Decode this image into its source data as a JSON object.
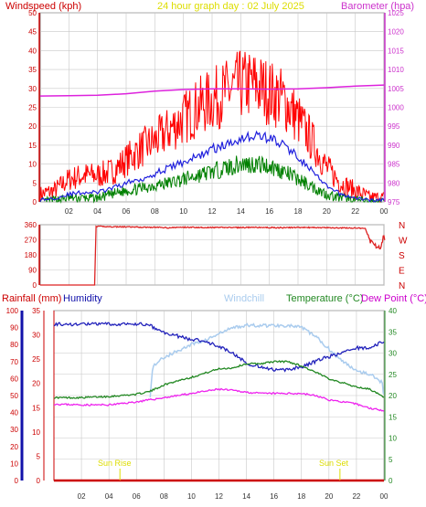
{
  "header": {
    "left_title": "Windspeed (kph)",
    "center_title": "24 hour graph day : 02 July 2025",
    "right_title": "Barometer (hpa)"
  },
  "lower_header": {
    "rainfall": "Rainfall (mm)",
    "humidity": "Humidity",
    "windchill": "Windchill",
    "temperature": "Temperature (°C)",
    "dewpoint": "Dew Point (°C)"
  },
  "annotations": {
    "sunrise": "Sun Rise",
    "sunset": "Sun Set"
  },
  "colors": {
    "wind_speed": "#ff0000",
    "wind_avg": "#2020dd",
    "wind_low": "#008000",
    "barometer": "#dd22dd",
    "wind_dir": "#dd2222",
    "humidity": "#2222bb",
    "windchill": "#aaccee",
    "temperature": "#228822",
    "dewpoint": "#ee22ee",
    "rain": "#cc0000",
    "grid": "#c8c8c8",
    "title_left": "#cc0000",
    "title_center": "#dddd00",
    "title_right": "#cc33cc",
    "humidity_axis": "#1111aa",
    "sun_marker": "#dddd00"
  },
  "chart_data": [
    {
      "type": "line",
      "name": "wind-barometer",
      "x_ticks": [
        "02",
        "04",
        "06",
        "08",
        "10",
        "12",
        "14",
        "16",
        "18",
        "20",
        "22",
        "00"
      ],
      "xlim": [
        0,
        24
      ],
      "y_left_ticks": [
        0,
        5,
        10,
        15,
        20,
        25,
        30,
        35,
        40,
        45,
        50
      ],
      "ylim_left": [
        0,
        50
      ],
      "y_right_ticks": [
        975,
        980,
        985,
        990,
        995,
        1000,
        1005,
        1010,
        1015,
        1020,
        1025
      ],
      "ylim_right": [
        975,
        1025
      ],
      "series": [
        {
          "key": "gust",
          "axis": "left",
          "points": [
            [
              0,
              2
            ],
            [
              1,
              3
            ],
            [
              2,
              6
            ],
            [
              3,
              7
            ],
            [
              4,
              7
            ],
            [
              5,
              8
            ],
            [
              6,
              11
            ],
            [
              7,
              14
            ],
            [
              8,
              16
            ],
            [
              9,
              19
            ],
            [
              10,
              22
            ],
            [
              11,
              25
            ],
            [
              12,
              27
            ],
            [
              13,
              29
            ],
            [
              14,
              31
            ],
            [
              15,
              31
            ],
            [
              16,
              29
            ],
            [
              17,
              27
            ],
            [
              18,
              22
            ],
            [
              19,
              16
            ],
            [
              20,
              9
            ],
            [
              21,
              5
            ],
            [
              22,
              3
            ],
            [
              23,
              1
            ],
            [
              24,
              1
            ]
          ]
        },
        {
          "key": "average",
          "axis": "left",
          "points": [
            [
              0,
              0.5
            ],
            [
              1,
              1
            ],
            [
              2,
              2
            ],
            [
              3,
              2.5
            ],
            [
              4,
              2.5
            ],
            [
              5,
              3.5
            ],
            [
              6,
              5
            ],
            [
              7,
              6
            ],
            [
              8,
              7.5
            ],
            [
              9,
              9
            ],
            [
              10,
              10.5
            ],
            [
              11,
              12
            ],
            [
              12,
              14
            ],
            [
              13,
              15
            ],
            [
              14,
              17
            ],
            [
              15,
              17.5
            ],
            [
              16,
              17
            ],
            [
              17,
              15
            ],
            [
              18,
              12
            ],
            [
              19,
              8
            ],
            [
              20,
              4
            ],
            [
              21,
              2
            ],
            [
              22,
              1
            ],
            [
              23,
              0.5
            ],
            [
              24,
              0.5
            ]
          ]
        },
        {
          "key": "low",
          "axis": "left",
          "points": [
            [
              0,
              0
            ],
            [
              1,
              0.5
            ],
            [
              2,
              1
            ],
            [
              3,
              1
            ],
            [
              4,
              1
            ],
            [
              5,
              2
            ],
            [
              6,
              3
            ],
            [
              7,
              3.5
            ],
            [
              8,
              4.5
            ],
            [
              9,
              5
            ],
            [
              10,
              6
            ],
            [
              11,
              7
            ],
            [
              12,
              8
            ],
            [
              13,
              9
            ],
            [
              14,
              10
            ],
            [
              15,
              10
            ],
            [
              16,
              9.5
            ],
            [
              17,
              8
            ],
            [
              18,
              6
            ],
            [
              19,
              4
            ],
            [
              20,
              2
            ],
            [
              21,
              1
            ],
            [
              22,
              0.5
            ],
            [
              23,
              0
            ],
            [
              24,
              0
            ]
          ]
        },
        {
          "key": "barometer",
          "axis": "right",
          "points": [
            [
              0,
              1003
            ],
            [
              2,
              1003.1
            ],
            [
              4,
              1003.2
            ],
            [
              6,
              1003.6
            ],
            [
              8,
              1004.3
            ],
            [
              10,
              1004.7
            ],
            [
              12,
              1004.9
            ],
            [
              14,
              1004.9
            ],
            [
              16,
              1004.8
            ],
            [
              18,
              1004.9
            ],
            [
              20,
              1005.2
            ],
            [
              22,
              1005.6
            ],
            [
              24,
              1005.9
            ]
          ]
        }
      ]
    },
    {
      "type": "line",
      "name": "wind-direction",
      "x_ticks": [
        "02",
        "04",
        "06",
        "08",
        "10",
        "12",
        "14",
        "16",
        "18",
        "20",
        "22",
        "00"
      ],
      "xlim": [
        0,
        24
      ],
      "y_ticks": [
        0,
        90,
        180,
        270,
        360
      ],
      "ylim": [
        0,
        360
      ],
      "compass_labels": [
        "N",
        "W",
        "S",
        "E",
        "N"
      ],
      "series": [
        {
          "key": "direction",
          "points": [
            [
              0,
              0
            ],
            [
              3.8,
              0
            ],
            [
              3.9,
              350
            ],
            [
              5,
              348
            ],
            [
              6,
              347
            ],
            [
              7,
              345
            ],
            [
              8,
              345
            ],
            [
              9,
              342
            ],
            [
              10,
              345
            ],
            [
              11,
              344
            ],
            [
              12,
              343
            ],
            [
              13,
              344
            ],
            [
              14,
              343
            ],
            [
              15,
              344
            ],
            [
              16,
              343
            ],
            [
              17,
              342
            ],
            [
              18,
              344
            ],
            [
              19,
              343
            ],
            [
              20,
              342
            ],
            [
              21,
              341
            ],
            [
              22,
              340
            ],
            [
              22.7,
              338
            ],
            [
              23,
              265
            ],
            [
              23.4,
              235
            ],
            [
              23.8,
              225
            ],
            [
              24,
              300
            ],
            [
              24.1,
              225
            ]
          ]
        }
      ]
    },
    {
      "type": "line",
      "name": "temperature-humidity-rain",
      "x_ticks": [
        "02",
        "04",
        "06",
        "08",
        "10",
        "12",
        "14",
        "16",
        "18",
        "20",
        "22",
        "00"
      ],
      "xlim": [
        0,
        24
      ],
      "y_rain_ticks": [
        0,
        10,
        20,
        30,
        40,
        50,
        60,
        70,
        80,
        90,
        100
      ],
      "y_left_ticks": [
        0,
        5,
        10,
        15,
        20,
        25,
        30,
        35
      ],
      "y_right_ticks": [
        0,
        5,
        10,
        15,
        20,
        25,
        30,
        35,
        40
      ],
      "ylim_rain": [
        0,
        100
      ],
      "ylim_left": [
        0,
        35
      ],
      "ylim_right": [
        0,
        40
      ],
      "series": [
        {
          "key": "humidity",
          "axis": "rain",
          "points": [
            [
              0,
              92
            ],
            [
              6.5,
              92
            ],
            [
              7,
              91
            ],
            [
              8,
              87
            ],
            [
              9,
              85
            ],
            [
              10,
              83
            ],
            [
              11,
              82
            ],
            [
              12,
              79
            ],
            [
              13,
              75
            ],
            [
              14,
              69
            ],
            [
              15,
              67
            ],
            [
              16,
              65
            ],
            [
              17,
              65
            ],
            [
              18,
              67
            ],
            [
              19,
              70
            ],
            [
              20,
              73
            ],
            [
              21,
              75
            ],
            [
              22,
              78
            ],
            [
              23,
              78
            ],
            [
              24,
              82
            ]
          ]
        },
        {
          "key": "windchill",
          "axis": "right",
          "points": [
            [
              7,
              20
            ],
            [
              7.2,
              27
            ],
            [
              8,
              29
            ],
            [
              9,
              30.5
            ],
            [
              10,
              32
            ],
            [
              11,
              33
            ],
            [
              12,
              34.5
            ],
            [
              13,
              36
            ],
            [
              14,
              36.5
            ],
            [
              15,
              36.5
            ],
            [
              16,
              36.5
            ],
            [
              17,
              36.5
            ],
            [
              18,
              36
            ],
            [
              19,
              34
            ],
            [
              20,
              31
            ],
            [
              21,
              28
            ],
            [
              22,
              26
            ],
            [
              23,
              25
            ],
            [
              23.9,
              23
            ],
            [
              24,
              19
            ]
          ]
        },
        {
          "key": "temperature",
          "axis": "right",
          "points": [
            [
              0,
              19.5
            ],
            [
              2,
              19.5
            ],
            [
              4,
              19.8
            ],
            [
              6,
              20.3
            ],
            [
              7,
              21
            ],
            [
              8,
              22.5
            ],
            [
              9,
              23.5
            ],
            [
              10,
              24.3
            ],
            [
              11,
              25.3
            ],
            [
              12,
              26.3
            ],
            [
              13,
              26.5
            ],
            [
              14,
              27.5
            ],
            [
              15,
              27.5
            ],
            [
              16,
              28
            ],
            [
              17,
              28
            ],
            [
              18,
              27
            ],
            [
              19,
              25.5
            ],
            [
              20,
              24
            ],
            [
              21,
              23
            ],
            [
              22,
              22
            ],
            [
              23,
              21.5
            ],
            [
              24,
              19.5
            ]
          ]
        },
        {
          "key": "dewpoint",
          "axis": "right",
          "points": [
            [
              0,
              18
            ],
            [
              2,
              17.8
            ],
            [
              4,
              17.8
            ],
            [
              6,
              18.5
            ],
            [
              8,
              19.5
            ],
            [
              10,
              20.5
            ],
            [
              12,
              21.5
            ],
            [
              13,
              21.2
            ],
            [
              14,
              20.8
            ],
            [
              15,
              20.5
            ],
            [
              16,
              20.5
            ],
            [
              17,
              20.5
            ],
            [
              18,
              20.5
            ],
            [
              19,
              20
            ],
            [
              20,
              19
            ],
            [
              21,
              18.5
            ],
            [
              22,
              18
            ],
            [
              23,
              17
            ],
            [
              24,
              16.5
            ]
          ]
        },
        {
          "key": "rain",
          "axis": "rain",
          "points": [
            [
              0,
              0
            ],
            [
              24,
              0
            ]
          ]
        }
      ],
      "sunrise_hour": 4.8,
      "sunset_hour": 20.8
    }
  ]
}
